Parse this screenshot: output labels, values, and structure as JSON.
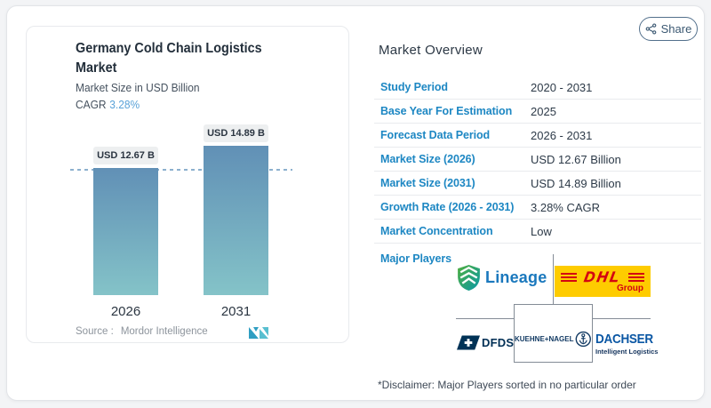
{
  "share": {
    "label": "Share"
  },
  "chart_card": {
    "title_line1": "Germany Cold Chain Logistics",
    "title_line2": "Market",
    "subtitle": "Market Size in USD Billion",
    "cagr_label": "CAGR",
    "cagr_value": "3.28%",
    "source_label": "Source :",
    "source_value": "Mordor Intelligence"
  },
  "chart_data": {
    "type": "bar",
    "title": "Germany Cold Chain Logistics Market",
    "ylabel": "Market Size in USD Billion",
    "categories": [
      "2026",
      "2031"
    ],
    "values": [
      12.67,
      14.89
    ],
    "bar_labels": [
      "USD 12.67 B",
      "USD 14.89 B"
    ],
    "cagr": "3.28%",
    "colors": {
      "bar_top": "#6190b6",
      "bar_bottom": "#84c3c8",
      "dashed_line": "#8cb0ce"
    },
    "dashed_line_at": 12.67,
    "legend": false,
    "grid": false
  },
  "overview": {
    "heading": "Market Overview",
    "rows": [
      {
        "label": "Study Period",
        "value": "2020 - 2031"
      },
      {
        "label": "Base Year For Estimation",
        "value": "2025"
      },
      {
        "label": "Forecast Data Period",
        "value": "2026 - 2031"
      },
      {
        "label": "Market Size (2026)",
        "value": "USD 12.67 Billion"
      },
      {
        "label": "Market Size (2031)",
        "value": "USD 14.89 Billion"
      },
      {
        "label": "Growth Rate (2026 - 2031)",
        "value": "3.28% CAGR"
      },
      {
        "label": "Market Concentration",
        "value": "Low"
      }
    ],
    "major_players_label": "Major Players",
    "players": {
      "lineage": "Lineage",
      "dhl": "DHL",
      "dhl_sub": "Group",
      "dfds": "DFDS",
      "kuehne": "KUEHNE+NAGEL",
      "dachser": "DACHSER",
      "dachser_sub": "Intelligent Logistics"
    },
    "disclaimer": "*Disclaimer: Major Players sorted in no particular order"
  }
}
